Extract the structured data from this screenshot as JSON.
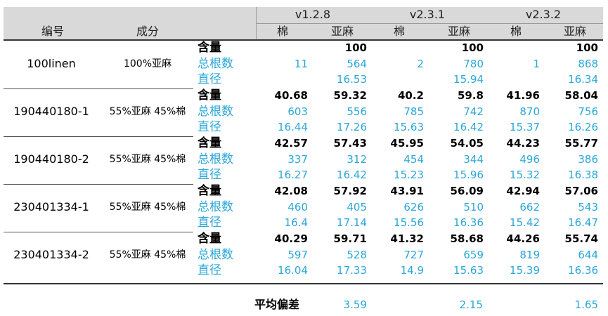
{
  "header": {
    "col_id": "编号",
    "col_comp": "成分",
    "versions": [
      "v1.2.8",
      "v2.3.1",
      "v2.3.2"
    ],
    "sub_cotton": "棉",
    "sub_linen": "亚麻"
  },
  "metrics": [
    "含量",
    "总根数",
    "直径"
  ],
  "rows": [
    {
      "id": "100linen",
      "composition": "100%亚麻",
      "values": [
        [
          "",
          "100",
          "",
          "100",
          "",
          "100"
        ],
        [
          "11",
          "564",
          "2",
          "780",
          "1",
          "868"
        ],
        [
          "",
          "16.53",
          "",
          "15.94",
          "",
          "16.34"
        ]
      ]
    },
    {
      "id": "190440180-1",
      "composition": "55%亚麻 45%棉",
      "values": [
        [
          "40.68",
          "59.32",
          "40.2",
          "59.8",
          "41.96",
          "58.04"
        ],
        [
          "603",
          "556",
          "785",
          "742",
          "870",
          "756"
        ],
        [
          "16.44",
          "17.26",
          "15.63",
          "16.42",
          "15.37",
          "16.26"
        ]
      ]
    },
    {
      "id": "190440180-2",
      "composition": "55%亚麻 45%棉",
      "values": [
        [
          "42.57",
          "57.43",
          "45.95",
          "54.05",
          "44.23",
          "55.77"
        ],
        [
          "337",
          "312",
          "454",
          "344",
          "496",
          "386"
        ],
        [
          "16.27",
          "16.42",
          "15.23",
          "15.96",
          "15.32",
          "16.38"
        ]
      ]
    },
    {
      "id": "230401334-1",
      "composition": "55%亚麻 45%棉",
      "values": [
        [
          "42.08",
          "57.92",
          "43.91",
          "56.09",
          "42.94",
          "57.06"
        ],
        [
          "460",
          "405",
          "626",
          "510",
          "662",
          "543"
        ],
        [
          "16.4",
          "17.14",
          "15.56",
          "16.36",
          "15.42",
          "16.47"
        ]
      ]
    },
    {
      "id": "230401334-2",
      "composition": "55%亚麻 45%棉",
      "values": [
        [
          "40.29",
          "59.71",
          "41.32",
          "58.68",
          "44.26",
          "55.74"
        ],
        [
          "597",
          "528",
          "727",
          "659",
          "819",
          "644"
        ],
        [
          "16.04",
          "17.33",
          "14.9",
          "15.63",
          "15.39",
          "16.36"
        ]
      ]
    }
  ],
  "footer": {
    "label": "平均偏差",
    "values": [
      "3.59",
      "2.15",
      "1.65"
    ]
  },
  "colors": {
    "header_bg": "#d9d9d9",
    "blue_text": "#2aa7d8",
    "text": "#000000"
  }
}
